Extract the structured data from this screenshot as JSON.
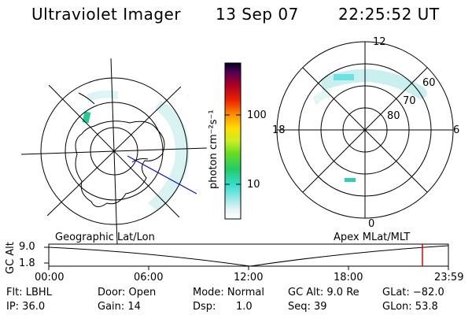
{
  "header": {
    "title": "Ultraviolet Imager",
    "date": "13 Sep 07",
    "time": "22:25:52 UT"
  },
  "colorbar": {
    "unit_label": "photon cm⁻²s⁻¹",
    "ticks": [
      "100",
      "10"
    ]
  },
  "mlt_map": {
    "hour_labels": [
      "12",
      "18",
      "6",
      "0"
    ],
    "lat_labels": [
      "60",
      "70",
      "80"
    ]
  },
  "plot": {
    "left_title": "Geographic Lat/Lon",
    "right_title": "Apex MLat/MLT",
    "y_axis_label": "GC Alt",
    "y_ticks": [
      "9.0",
      "1.8"
    ],
    "x_ticks": [
      "00:00",
      "06:00",
      "12:00",
      "18:00",
      "23:59"
    ],
    "marker_color": "#e00000"
  },
  "info": {
    "filter": "Flt: LBHL",
    "door": "Door: Open",
    "mode": "Mode: Normal",
    "gc_alt": "GC Alt: 9.0 Re",
    "glat": "GLat: −82.0",
    "ip": "IP: 36.0",
    "gain": "Gain: 14",
    "dsp_label": "Dsp:",
    "dsp_value": "1.0",
    "seq": "Seq: 39",
    "glon": "GLon:  53.8"
  }
}
